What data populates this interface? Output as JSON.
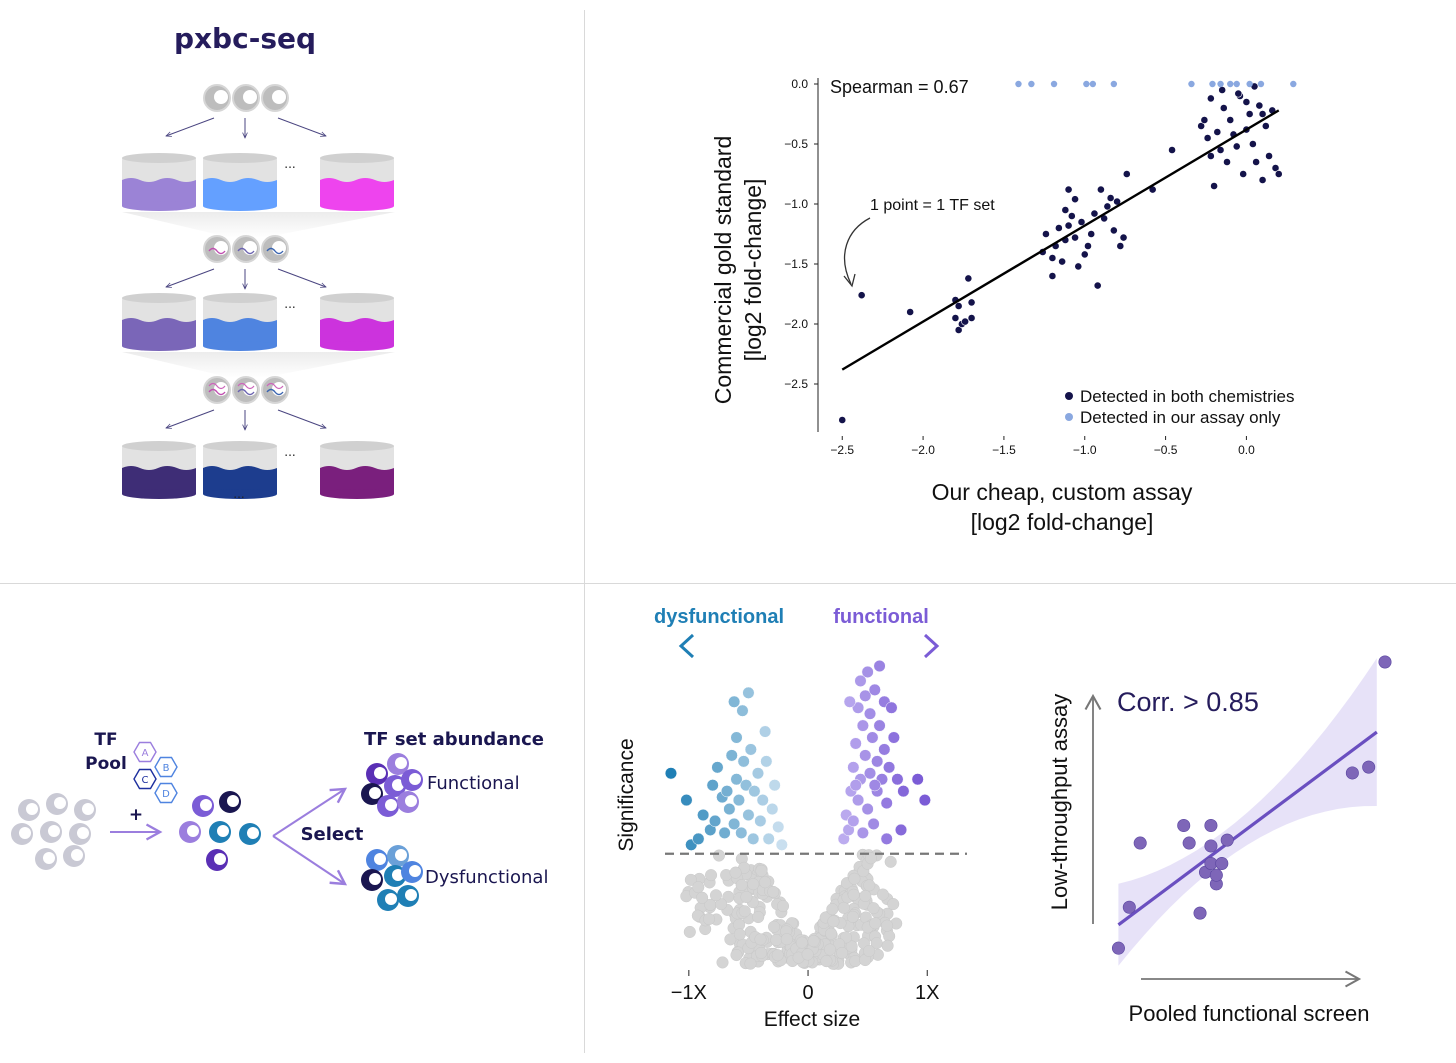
{
  "colors": {
    "navy": "#14134a",
    "light_blue": "#8aa8e0",
    "purple": "#7b5cd6",
    "teal_blue": "#1f7fb5",
    "grey_point": "#cfcfcf",
    "title_navy": "#251c5c"
  },
  "panel_a": {
    "title": "pxbc-seq",
    "ellipsis": "...",
    "rows": [
      {
        "colors": [
          "#9b83d6",
          "#64a0ff",
          "#ee44ee"
        ]
      },
      {
        "colors": [
          "#7a66b8",
          "#4f84e0",
          "#cc33dd"
        ]
      },
      {
        "colors": [
          "#3e2d76",
          "#1d3d8e",
          "#7a1f7d"
        ]
      }
    ]
  },
  "panel_b": {
    "chart_data": {
      "type": "scatter",
      "annotation_corr": "Spearman = 0.67",
      "annotation_point": "1 point = 1 TF set",
      "xlabel_line1": "Our cheap, custom assay",
      "xlabel_line2": "[log2 fold-change]",
      "ylabel_line1": "Commercial gold standard",
      "ylabel_line2": "[log2 fold-change]",
      "xlim": [
        -2.65,
        0.35
      ],
      "ylim": [
        -2.9,
        0.05
      ],
      "xticks": [
        -2.5,
        -2.0,
        -1.5,
        -1.0,
        -0.5,
        0.0
      ],
      "xtick_labels": [
        "−2.5",
        "−2.0",
        "−1.5",
        "−1.0",
        "−0.5",
        "0.0"
      ],
      "yticks": [
        0.0,
        -0.5,
        -1.0,
        -1.5,
        -2.0,
        -2.5
      ],
      "ytick_labels": [
        "0.0",
        "−0.5",
        "−1.0",
        "−1.5",
        "−2.0",
        "−2.5"
      ],
      "fit_line": {
        "x": [
          -2.5,
          0.2
        ],
        "y": [
          -2.38,
          -0.22
        ]
      },
      "series": [
        {
          "name": "Detected in both chemistries",
          "color": "#14134a",
          "x": [
            -2.5,
            -2.38,
            -2.08,
            -1.8,
            -1.8,
            -1.78,
            -1.78,
            -1.76,
            -1.74,
            -1.72,
            -1.7,
            -1.7,
            -1.26,
            -1.24,
            -1.2,
            -1.2,
            -1.18,
            -1.16,
            -1.14,
            -1.12,
            -1.12,
            -1.1,
            -1.1,
            -1.08,
            -1.06,
            -1.06,
            -1.04,
            -1.02,
            -1.0,
            -0.98,
            -0.96,
            -0.94,
            -0.92,
            -0.9,
            -0.88,
            -0.86,
            -0.84,
            -0.82,
            -0.8,
            -0.78,
            -0.76,
            -0.74,
            -0.58,
            -0.46,
            -0.28,
            -0.26,
            -0.24,
            -0.22,
            -0.2,
            -0.18,
            -0.16,
            -0.14,
            -0.12,
            -0.1,
            -0.08,
            -0.06,
            -0.04,
            -0.02,
            0.0,
            0.02,
            0.04,
            0.06,
            0.08,
            0.1,
            0.12,
            0.14,
            0.16,
            0.18,
            0.2,
            -0.22,
            -0.15,
            -0.05,
            0.0,
            0.05,
            0.1
          ],
          "y": [
            -2.8,
            -1.76,
            -1.9,
            -1.95,
            -1.8,
            -2.05,
            -1.85,
            -2.0,
            -1.98,
            -1.62,
            -1.95,
            -1.82,
            -1.4,
            -1.25,
            -1.6,
            -1.45,
            -1.35,
            -1.2,
            -1.48,
            -1.3,
            -1.05,
            -0.88,
            -1.18,
            -1.1,
            -1.28,
            -0.96,
            -1.52,
            -1.15,
            -1.42,
            -1.35,
            -1.25,
            -1.08,
            -1.68,
            -0.88,
            -1.12,
            -1.02,
            -0.95,
            -1.22,
            -0.98,
            -1.35,
            -1.28,
            -0.75,
            -0.88,
            -0.55,
            -0.35,
            -0.3,
            -0.45,
            -0.6,
            -0.85,
            -0.4,
            -0.55,
            -0.2,
            -0.65,
            -0.3,
            -0.42,
            -0.52,
            -0.1,
            -0.75,
            -0.38,
            -0.25,
            -0.5,
            -0.65,
            -0.18,
            -0.8,
            -0.35,
            -0.6,
            -0.22,
            -0.7,
            -0.75,
            -0.12,
            -0.05,
            -0.08,
            -0.15,
            -0.02,
            -0.25
          ],
          "legend": "Detected in both chemistries"
        },
        {
          "name": "Detected in our assay only",
          "color": "#8aa8e0",
          "x": [
            -1.41,
            -1.33,
            -1.19,
            -0.99,
            -0.95,
            -0.82,
            -0.34,
            -0.21,
            -0.16,
            -0.1,
            -0.06,
            0.02,
            0.09,
            0.29
          ],
          "y": [
            0,
            0,
            0,
            0,
            0,
            0,
            0,
            0,
            0,
            0,
            0,
            0,
            0,
            0
          ],
          "legend": "Detected in our assay only"
        }
      ]
    }
  },
  "panel_c": {
    "tf_label_1": "TF",
    "tf_label_2": "Pool",
    "plus": "+",
    "select": "Select",
    "abundance_title": "TF set abundance",
    "functional": "Functional",
    "dysfunctional": "Dysfunctional",
    "hex_labels": [
      "A",
      "B",
      "C",
      "D"
    ]
  },
  "panel_d": {
    "chart_data": {
      "type": "scatter",
      "subtype": "volcano",
      "label_left": "dysfunctional",
      "label_right": "functional",
      "xlabel": "Effect size",
      "ylabel": "Significance",
      "xticks": [
        -1,
        0,
        1
      ],
      "xtick_labels": [
        "−1X",
        "0",
        "1X"
      ],
      "xlim": [
        -1.2,
        1.3
      ],
      "ylim": [
        0,
        1
      ],
      "threshold": 0.37,
      "grey_count": 320,
      "groups": [
        {
          "name": "dysfunctional",
          "color": "#1f7fb5",
          "points": [
            [
              -1.15,
              0.64
            ],
            [
              -1.02,
              0.55
            ],
            [
              -0.98,
              0.4
            ],
            [
              -0.92,
              0.42
            ],
            [
              -0.88,
              0.5
            ],
            [
              -0.82,
              0.45
            ],
            [
              -0.8,
              0.6
            ],
            [
              -0.78,
              0.48
            ],
            [
              -0.76,
              0.66
            ],
            [
              -0.72,
              0.56
            ],
            [
              -0.7,
              0.44
            ],
            [
              -0.68,
              0.58
            ],
            [
              -0.66,
              0.52
            ],
            [
              -0.64,
              0.7
            ],
            [
              -0.62,
              0.47
            ],
            [
              -0.6,
              0.62
            ],
            [
              -0.6,
              0.76
            ],
            [
              -0.58,
              0.55
            ],
            [
              -0.56,
              0.44
            ],
            [
              -0.55,
              0.85
            ],
            [
              -0.54,
              0.68
            ],
            [
              -0.52,
              0.6
            ],
            [
              -0.5,
              0.5
            ],
            [
              -0.48,
              0.72
            ],
            [
              -0.46,
              0.42
            ],
            [
              -0.45,
              0.58
            ],
            [
              -0.42,
              0.64
            ],
            [
              -0.4,
              0.48
            ],
            [
              -0.38,
              0.55
            ],
            [
              -0.35,
              0.68
            ],
            [
              -0.33,
              0.42
            ],
            [
              -0.3,
              0.52
            ],
            [
              -0.28,
              0.6
            ],
            [
              -0.25,
              0.46
            ],
            [
              -0.22,
              0.4
            ],
            [
              -0.5,
              0.91
            ],
            [
              -0.36,
              0.78
            ],
            [
              -0.62,
              0.88
            ]
          ]
        },
        {
          "name": "functional",
          "color": "#7b5cd6",
          "points": [
            [
              0.3,
              0.42
            ],
            [
              0.32,
              0.5
            ],
            [
              0.34,
              0.45
            ],
            [
              0.36,
              0.58
            ],
            [
              0.38,
              0.66
            ],
            [
              0.38,
              0.48
            ],
            [
              0.4,
              0.74
            ],
            [
              0.42,
              0.55
            ],
            [
              0.42,
              0.86
            ],
            [
              0.44,
              0.62
            ],
            [
              0.44,
              0.95
            ],
            [
              0.46,
              0.44
            ],
            [
              0.46,
              0.8
            ],
            [
              0.48,
              0.7
            ],
            [
              0.48,
              0.9
            ],
            [
              0.5,
              0.52
            ],
            [
              0.5,
              0.98
            ],
            [
              0.52,
              0.64
            ],
            [
              0.52,
              0.84
            ],
            [
              0.54,
              0.76
            ],
            [
              0.55,
              0.47
            ],
            [
              0.56,
              0.92
            ],
            [
              0.58,
              0.58
            ],
            [
              0.58,
              0.68
            ],
            [
              0.6,
              0.8
            ],
            [
              0.6,
              1.0
            ],
            [
              0.62,
              0.62
            ],
            [
              0.64,
              0.72
            ],
            [
              0.64,
              0.88
            ],
            [
              0.66,
              0.54
            ],
            [
              0.66,
              0.42
            ],
            [
              0.68,
              0.66
            ],
            [
              0.7,
              0.86
            ],
            [
              0.72,
              0.76
            ],
            [
              0.75,
              0.62
            ],
            [
              0.78,
              0.45
            ],
            [
              0.8,
              0.58
            ],
            [
              0.92,
              0.62
            ],
            [
              0.98,
              0.55
            ],
            [
              0.35,
              0.88
            ],
            [
              0.4,
              0.6
            ],
            [
              0.56,
              0.6
            ]
          ]
        }
      ]
    }
  },
  "panel_e": {
    "chart_data": {
      "type": "scatter",
      "annotation": "Corr. > 0.85",
      "xlabel": "Pooled functional screen",
      "ylabel": "Low-throughput assay",
      "xlim": [
        0,
        1
      ],
      "ylim": [
        0,
        1
      ],
      "fit_line": {
        "x": [
          0.02,
          0.97
        ],
        "y": [
          0.1,
          0.76
        ]
      },
      "points": [
        [
          0.02,
          0.02
        ],
        [
          0.06,
          0.16
        ],
        [
          0.1,
          0.38
        ],
        [
          0.26,
          0.44
        ],
        [
          0.28,
          0.38
        ],
        [
          0.32,
          0.14
        ],
        [
          0.34,
          0.28
        ],
        [
          0.36,
          0.31
        ],
        [
          0.36,
          0.44
        ],
        [
          0.36,
          0.37
        ],
        [
          0.38,
          0.24
        ],
        [
          0.38,
          0.27
        ],
        [
          0.4,
          0.31
        ],
        [
          0.42,
          0.39
        ],
        [
          0.88,
          0.62
        ],
        [
          0.94,
          0.64
        ],
        [
          1.0,
          1.0
        ]
      ],
      "color": "#7b5cd6"
    }
  }
}
